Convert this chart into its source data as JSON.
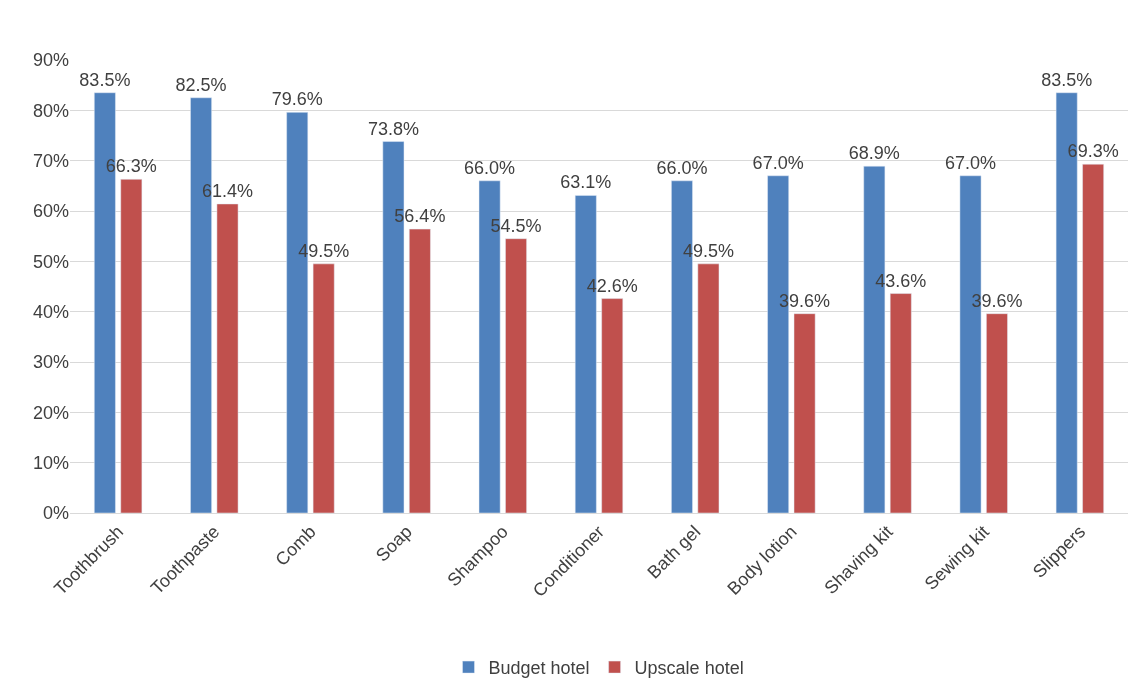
{
  "chart_data": {
    "type": "bar",
    "categories": [
      "Toothbrush",
      "Toothpaste",
      "Comb",
      "Soap",
      "Shampoo",
      "Conditioner",
      "Bath gel",
      "Body lotion",
      "Shaving kit",
      "Sewing kit",
      "Slippers"
    ],
    "series": [
      {
        "name": "Budget hotel",
        "color": "#4f81bd",
        "values": [
          83.5,
          82.5,
          79.6,
          73.8,
          66.0,
          63.1,
          66.0,
          67.0,
          68.9,
          67.0,
          83.5
        ],
        "value_labels": [
          "83.5%",
          "82.5%",
          "79.6%",
          "73.8%",
          "66.0%",
          "63.1%",
          "66.0%",
          "67.0%",
          "68.9%",
          "67.0%",
          "83.5%"
        ]
      },
      {
        "name": "Upscale hotel",
        "color": "#c0504d",
        "values": [
          66.3,
          61.4,
          49.5,
          56.4,
          54.5,
          42.6,
          49.5,
          39.6,
          43.6,
          39.6,
          69.3
        ],
        "value_labels": [
          "66.3%",
          "61.4%",
          "49.5%",
          "56.4%",
          "54.5%",
          "42.6%",
          "49.5%",
          "39.6%",
          "43.6%",
          "39.6%",
          "69.3%"
        ]
      }
    ],
    "ylim": [
      0,
      90
    ],
    "yticks": [
      {
        "value": 0,
        "label": "0%"
      },
      {
        "value": 10,
        "label": "10%"
      },
      {
        "value": 20,
        "label": "20%"
      },
      {
        "value": 30,
        "label": "30%"
      },
      {
        "value": 40,
        "label": "40%"
      },
      {
        "value": 50,
        "label": "50%"
      },
      {
        "value": 60,
        "label": "60%"
      },
      {
        "value": 70,
        "label": "70%"
      },
      {
        "value": 80,
        "label": "80%"
      },
      {
        "value": 90,
        "label": "90%"
      }
    ],
    "grid": "y",
    "legend": "bottom"
  }
}
